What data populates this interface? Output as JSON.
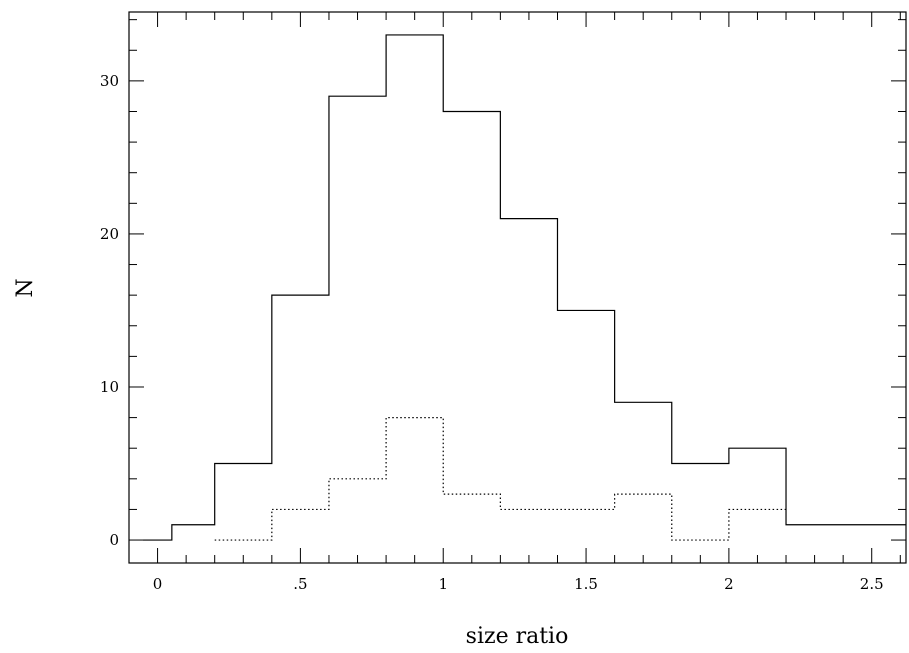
{
  "chart_data": {
    "type": "histogram",
    "xlabel": "size ratio",
    "ylabel": "N",
    "xlim": [
      -0.1,
      2.62
    ],
    "ylim": [
      -1.5,
      34.5
    ],
    "x_major_ticks": [
      0,
      0.5,
      1,
      1.5,
      2,
      2.5
    ],
    "x_tick_labels": [
      "0",
      ".5",
      "1",
      "1.5",
      "2",
      "2.5"
    ],
    "x_minor_step": 0.1,
    "y_major_ticks": [
      0,
      10,
      20,
      30
    ],
    "y_tick_labels": [
      "0",
      "10",
      "20",
      "30"
    ],
    "y_minor_step": 2,
    "grid": false,
    "series": [
      {
        "style": "solid",
        "edges": [
          -0.05,
          0.05,
          0.2,
          0.4,
          0.6,
          0.8,
          1.0,
          1.2,
          1.4,
          1.6,
          1.8,
          2.0,
          2.2,
          2.62
        ],
        "counts": [
          0,
          1,
          5,
          16,
          29,
          33,
          28,
          21,
          15,
          9,
          5,
          6,
          1
        ]
      },
      {
        "style": "dotted",
        "edges": [
          0.2,
          0.4,
          0.6,
          0.8,
          1.0,
          1.2,
          1.4,
          1.6,
          1.8,
          2.0,
          2.2
        ],
        "counts": [
          0,
          2,
          4,
          8,
          3,
          2,
          2,
          3,
          0,
          2
        ]
      }
    ]
  }
}
